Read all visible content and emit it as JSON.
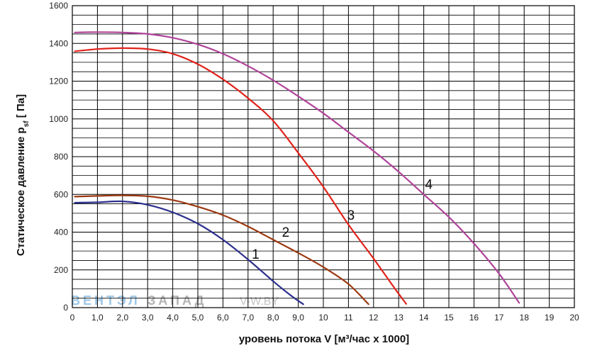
{
  "chart_data": {
    "type": "line",
    "xlabel": "уровень потока  V [м³/час x 1000]",
    "ylabel": "Статическое давление  p",
    "ylabel_sub": "sf",
    "ylabel_unit": " [ Па]",
    "xlim": [
      0,
      20
    ],
    "ylim": [
      0,
      1600
    ],
    "x_ticks": [
      "0",
      "1,0",
      "2,0",
      "3,0",
      "4,0",
      "5,0",
      "6,0",
      "7,0",
      "8,0",
      "9,0",
      "10",
      "11",
      "12",
      "13",
      "14",
      "15",
      "16",
      "17",
      "18",
      "19",
      "20"
    ],
    "y_ticks": [
      "0",
      "200",
      "400",
      "600",
      "800",
      "1000",
      "1200",
      "1400",
      "1600"
    ],
    "grid": true,
    "watermark": {
      "part1": "ВЕНТЭЛ",
      "part2": "ЗАПАД",
      "part3": "V-W.BY"
    },
    "series": [
      {
        "name": "1",
        "color": "#2b2f8c",
        "label_at": [
          7.3,
          260
        ],
        "x": [
          0.1,
          1.0,
          2.0,
          3.0,
          4.0,
          5.0,
          6.0,
          7.0,
          8.0,
          8.7,
          9.2
        ],
        "y": [
          556,
          558,
          563,
          545,
          505,
          445,
          360,
          255,
          140,
          65,
          18
        ]
      },
      {
        "name": "2",
        "color": "#9c3a12",
        "label_at": [
          8.5,
          375
        ],
        "x": [
          0.1,
          1.0,
          2.0,
          3.0,
          4.0,
          5.0,
          6.0,
          7.0,
          8.0,
          9.0,
          10.0,
          11.0,
          11.8
        ],
        "y": [
          588,
          592,
          595,
          590,
          570,
          535,
          490,
          430,
          360,
          290,
          215,
          125,
          18
        ]
      },
      {
        "name": "3",
        "color": "#e0231b",
        "label_at": [
          11.1,
          465
        ],
        "x": [
          0.1,
          1.0,
          2.0,
          3.0,
          4.0,
          5.0,
          6.0,
          7.0,
          8.0,
          9.0,
          10.0,
          11.0,
          12.0,
          12.8,
          13.3
        ],
        "y": [
          1358,
          1370,
          1375,
          1370,
          1345,
          1290,
          1210,
          1110,
          990,
          820,
          640,
          440,
          260,
          110,
          20
        ]
      },
      {
        "name": "4",
        "color": "#b0449a",
        "label_at": [
          14.2,
          630
        ],
        "x": [
          0.1,
          1.0,
          2.0,
          3.0,
          4.0,
          5.0,
          6.0,
          7.0,
          8.0,
          9.0,
          10.0,
          11.0,
          12.0,
          13.0,
          14.0,
          15.0,
          16.0,
          17.0,
          17.8
        ],
        "y": [
          1458,
          1460,
          1458,
          1450,
          1430,
          1395,
          1345,
          1280,
          1205,
          1120,
          1030,
          930,
          830,
          720,
          600,
          480,
          340,
          180,
          25
        ]
      }
    ]
  }
}
